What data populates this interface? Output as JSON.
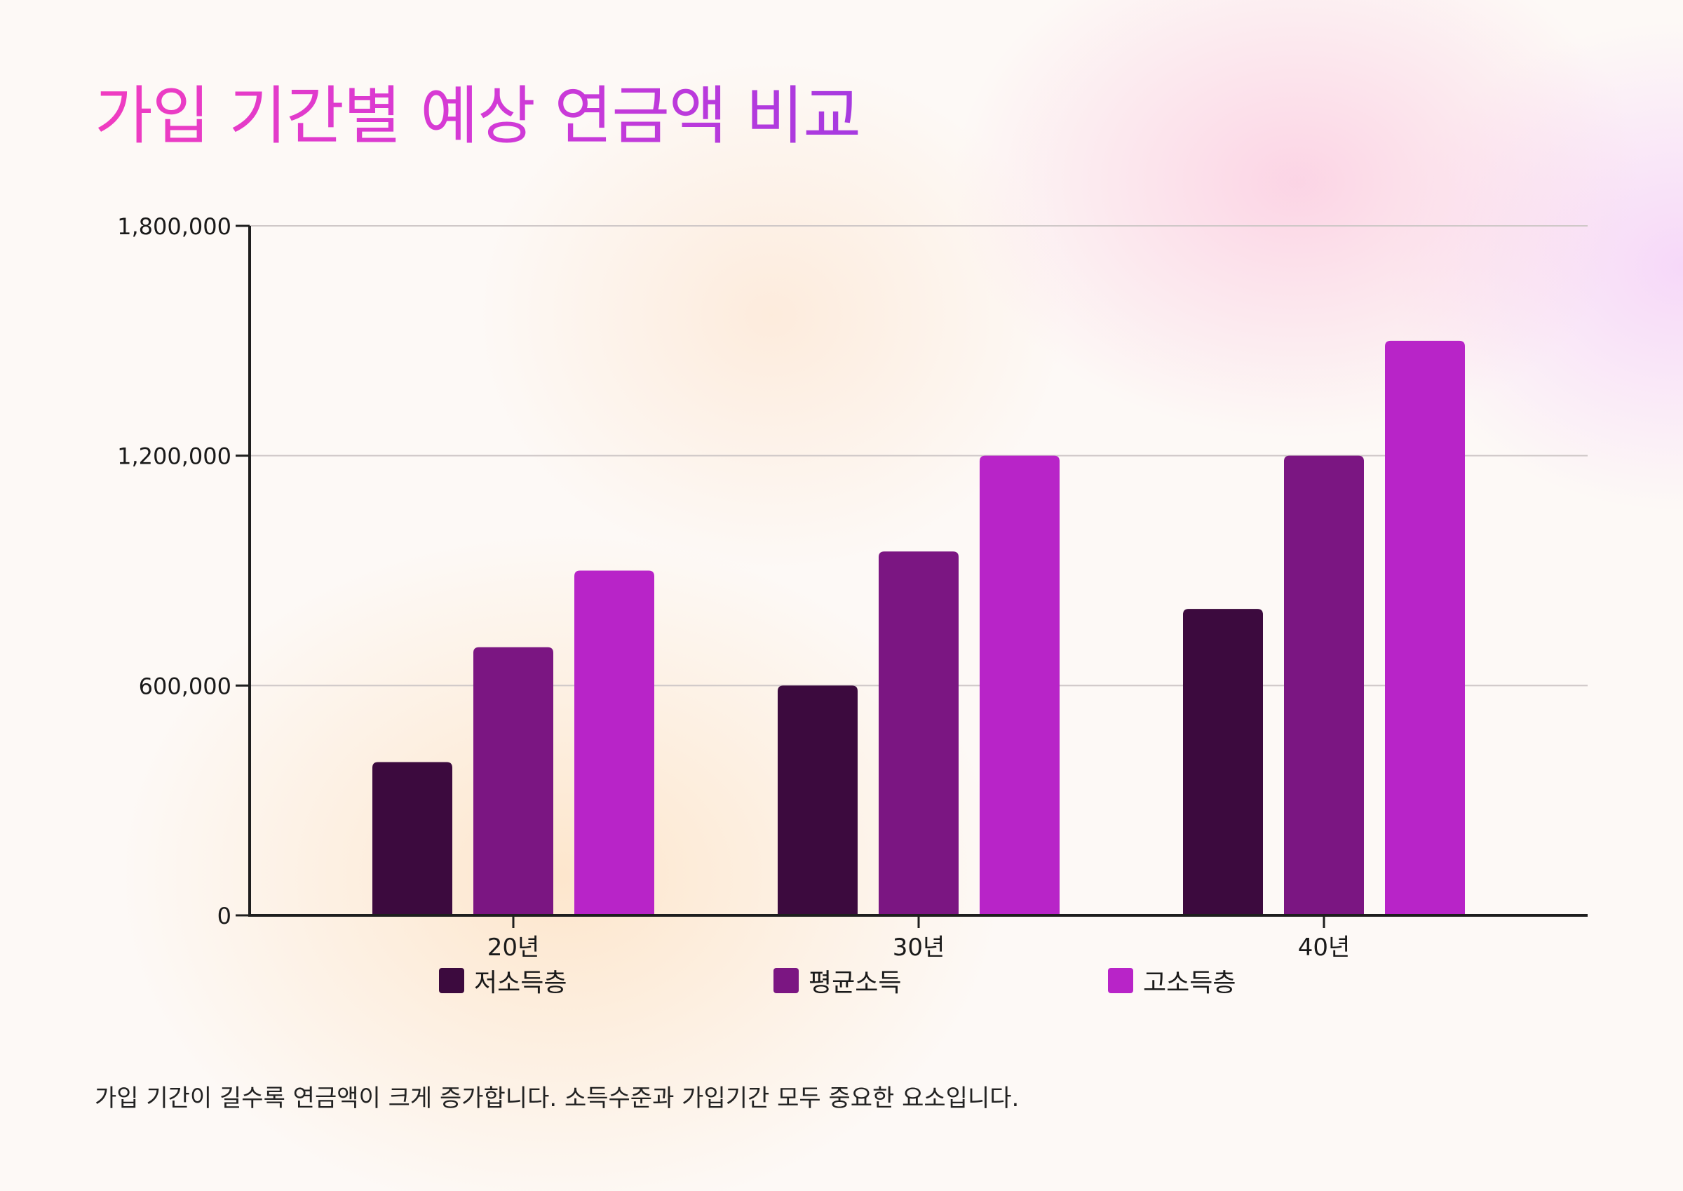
{
  "title": "가입 기간별 예상 연금액 비교",
  "caption": "가입 기간이 길수록 연금액이 크게 증가합니다. 소득수준과 가입기간 모두 중요한 요소입니다.",
  "chart_data": {
    "type": "bar",
    "title": "가입 기간별 예상 연금액 비교",
    "xlabel": "",
    "ylabel": "",
    "categories": [
      "20년",
      "30년",
      "40년"
    ],
    "ylim": [
      0,
      1800000
    ],
    "yticks": [
      0,
      600000,
      1200000,
      1800000
    ],
    "ytick_labels": [
      "0",
      "600,000",
      "1,200,000",
      "1,800,000"
    ],
    "grid": true,
    "legend_position": "bottom",
    "series": [
      {
        "name": "저소득층",
        "color": "#3c0a3e",
        "values": [
          400000,
          600000,
          800000
        ]
      },
      {
        "name": "평균소득",
        "color": "#7b1682",
        "values": [
          700000,
          950000,
          1200000
        ]
      },
      {
        "name": "고소득층",
        "color": "#b824c8",
        "values": [
          900000,
          1200000,
          1500000
        ]
      }
    ]
  }
}
